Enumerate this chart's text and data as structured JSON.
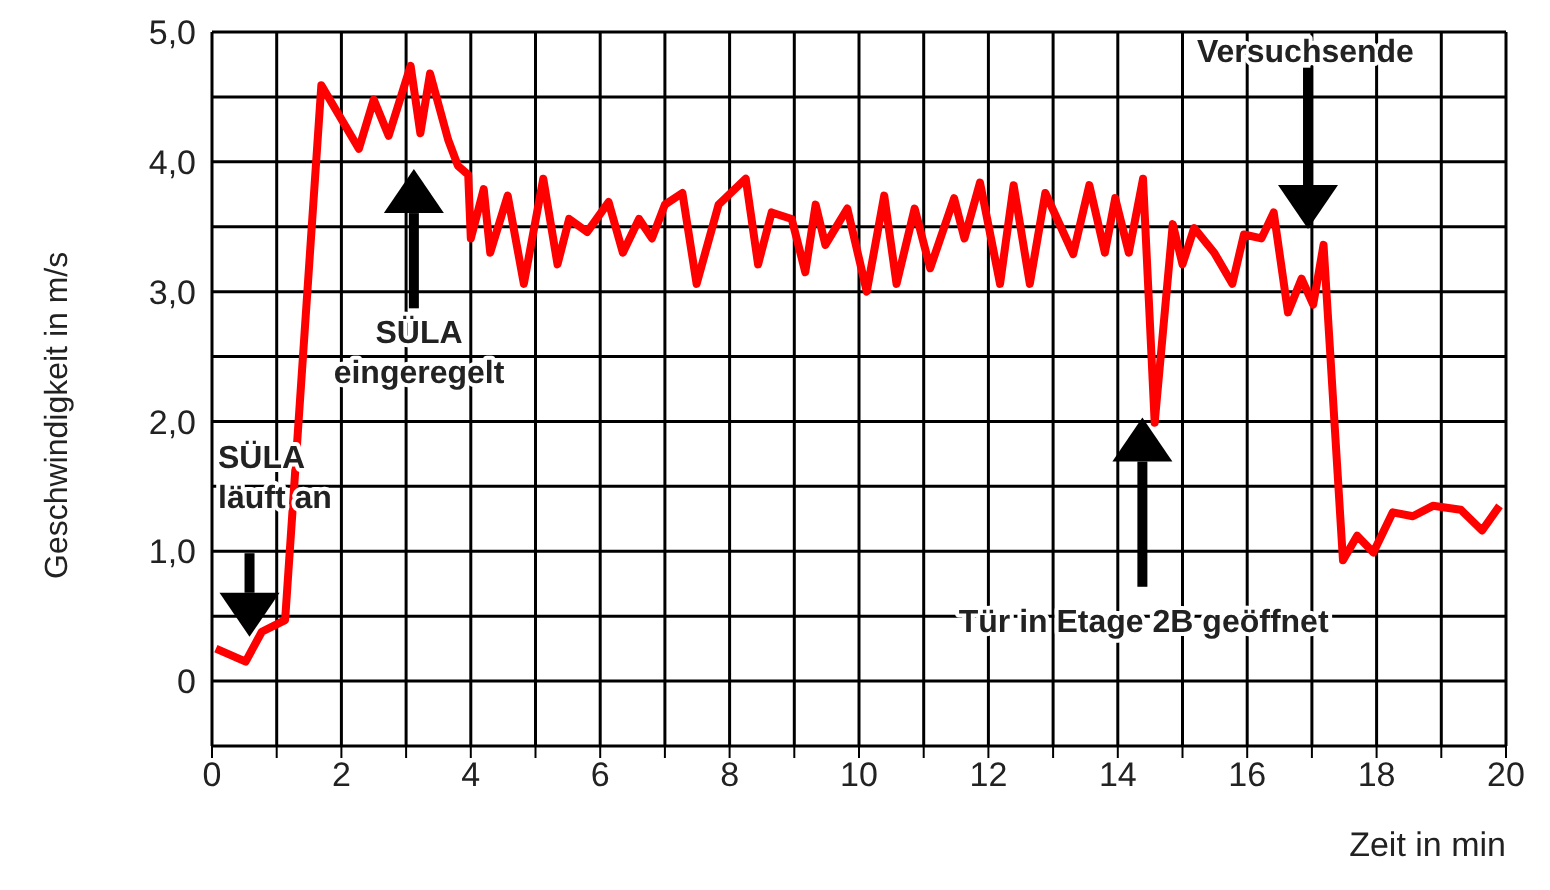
{
  "chart_data": {
    "type": "line",
    "xlabel": "Zeit in min",
    "ylabel": "Geschwindigkeit in m/s",
    "x": [
      0.06,
      0.52,
      0.77,
      1.13,
      1.69,
      2.27,
      2.5,
      2.73,
      3.07,
      3.22,
      3.37,
      3.65,
      3.8,
      3.96,
      4.0,
      4.2,
      4.3,
      4.57,
      4.82,
      5.12,
      5.34,
      5.52,
      5.8,
      6.13,
      6.35,
      6.6,
      6.8,
      7.0,
      7.27,
      7.49,
      7.83,
      8.25,
      8.44,
      8.65,
      8.96,
      9.17,
      9.33,
      9.48,
      9.82,
      10.12,
      10.39,
      10.58,
      10.86,
      11.1,
      11.47,
      11.63,
      11.87,
      12.18,
      12.39,
      12.64,
      12.88,
      13.31,
      13.56,
      13.8,
      13.96,
      14.17,
      14.39,
      14.57,
      14.85,
      15.0,
      15.18,
      15.49,
      15.77,
      15.95,
      16.22,
      16.41,
      16.63,
      16.84,
      17.02,
      17.18,
      17.48,
      17.7,
      17.95,
      18.25,
      18.56,
      18.87,
      19.3,
      19.63,
      19.9
    ],
    "values": [
      0.25,
      0.15,
      0.38,
      0.47,
      4.59,
      4.1,
      4.48,
      4.2,
      4.74,
      4.22,
      4.68,
      4.17,
      3.97,
      3.9,
      3.41,
      3.79,
      3.3,
      3.74,
      3.06,
      3.87,
      3.21,
      3.56,
      3.46,
      3.69,
      3.3,
      3.56,
      3.41,
      3.67,
      3.76,
      3.06,
      3.67,
      3.87,
      3.21,
      3.61,
      3.56,
      3.15,
      3.67,
      3.36,
      3.64,
      3.0,
      3.74,
      3.06,
      3.64,
      3.18,
      3.72,
      3.41,
      3.84,
      3.06,
      3.82,
      3.06,
      3.76,
      3.29,
      3.82,
      3.3,
      3.72,
      3.3,
      3.87,
      1.99,
      3.52,
      3.21,
      3.49,
      3.3,
      3.06,
      3.44,
      3.41,
      3.61,
      2.84,
      3.1,
      2.9,
      3.36,
      0.93,
      1.12,
      0.99,
      1.3,
      1.27,
      1.35,
      1.32,
      1.16,
      1.35
    ],
    "color": "#ff0000",
    "marker": "none",
    "line_style": "solid",
    "xlim": [
      0,
      20
    ],
    "xticks": [
      0,
      {
        "value": 1,
        "label": null
      },
      2,
      {
        "value": 3,
        "label": null
      },
      4,
      {
        "value": 5,
        "label": null
      },
      6,
      {
        "value": 7,
        "label": null
      },
      8,
      {
        "value": 9,
        "label": null
      },
      10,
      {
        "value": 11,
        "label": null
      },
      12,
      {
        "value": 13,
        "label": null
      },
      14,
      {
        "value": 15,
        "label": null
      },
      16,
      {
        "value": 17,
        "label": null
      },
      18,
      {
        "value": 19,
        "label": null
      },
      20
    ],
    "ylim": [
      -0.5,
      5
    ],
    "yticks": [
      {
        "value": -0.5,
        "label": null
      },
      0,
      {
        "value": 0.5,
        "label": null
      },
      {
        "value": 1,
        "label": "1,0"
      },
      {
        "value": 1.5,
        "label": null
      },
      {
        "value": 2,
        "label": "2,0"
      },
      {
        "value": 2.5,
        "label": null
      },
      {
        "value": 3,
        "label": "3,0"
      },
      {
        "value": 3.5,
        "label": null
      },
      {
        "value": 4,
        "label": "4,0"
      },
      {
        "value": 4.5,
        "label": null
      },
      {
        "value": 5,
        "label": "5,0"
      }
    ],
    "grid": true,
    "legend": false,
    "annotations": [
      "SÜLA\nläuft an",
      "SÜLA\neingeregelt",
      "Tür in Etage 2B geöffnet",
      "Versuchsende"
    ]
  }
}
